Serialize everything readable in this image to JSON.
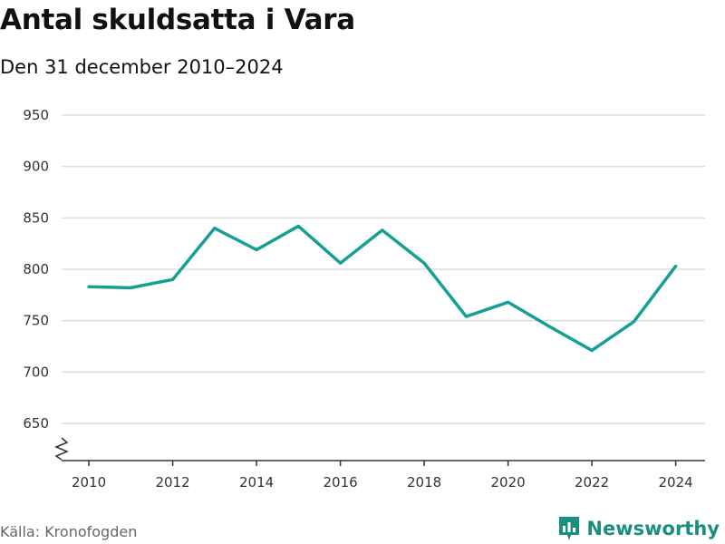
{
  "title": "Antal skuldsatta i Vara",
  "subtitle": "Den 31 december 2010–2024",
  "source": "Källa: Kronofogden",
  "brand": {
    "name": "Newsworthy",
    "icon": "newsworthy-logo-icon"
  },
  "colors": {
    "line": "#16a093",
    "grid": "#dddddd",
    "axis": "#333333",
    "brand": "#1a8f80"
  },
  "chart_data": {
    "type": "line",
    "title": "Antal skuldsatta i Vara",
    "xlabel": "",
    "ylabel": "",
    "x": [
      2010,
      2011,
      2012,
      2013,
      2014,
      2015,
      2016,
      2017,
      2018,
      2019,
      2020,
      2021,
      2022,
      2023,
      2024
    ],
    "series": [
      {
        "name": "Antal skuldsatta",
        "values": [
          783,
          782,
          790,
          840,
          819,
          842,
          806,
          838,
          806,
          754,
          768,
          744,
          721,
          749,
          803
        ]
      }
    ],
    "xticks": [
      2010,
      2012,
      2014,
      2016,
      2018,
      2020,
      2022,
      2024
    ],
    "yticks": [
      650,
      700,
      750,
      800,
      850,
      900,
      950
    ],
    "ylim": [
      615,
      950
    ],
    "y_axis_break": true,
    "grid": true
  }
}
